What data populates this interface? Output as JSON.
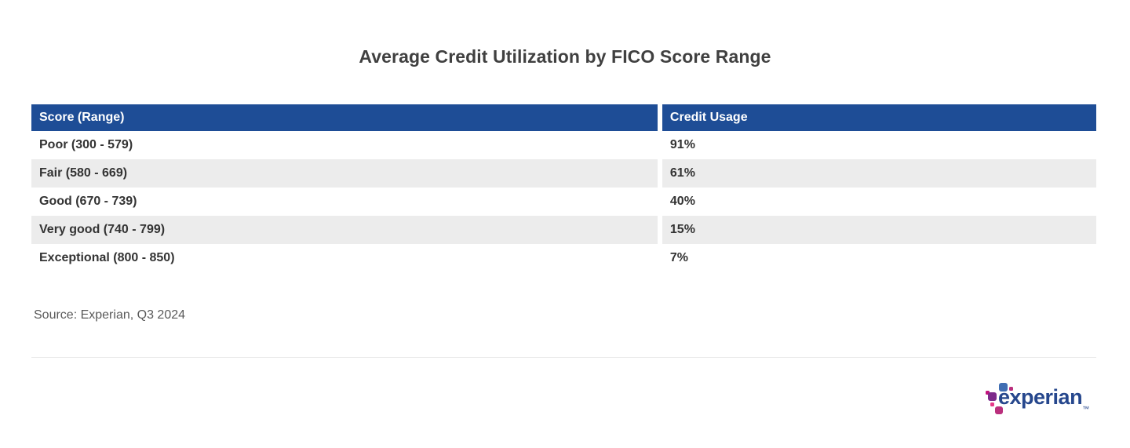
{
  "page": {
    "title": "Average Credit Utilization by FICO Score Range",
    "source_note": "Source: Experian, Q3 2024"
  },
  "chart_data": {
    "type": "table",
    "title": "Average Credit Utilization by FICO Score Range",
    "columns": [
      "Score (Range)",
      "Credit Usage"
    ],
    "rows": [
      [
        "Poor (300 - 579)",
        "91%"
      ],
      [
        "Fair (580 - 669)",
        "61%"
      ],
      [
        "Good (670 - 739)",
        "40%"
      ],
      [
        "Very good (740 - 799)",
        "15%"
      ],
      [
        "Exceptional (800 - 850)",
        "7%"
      ]
    ],
    "categories": [
      "Poor (300 - 579)",
      "Fair (580 - 669)",
      "Good (670 - 739)",
      "Very good (740 - 799)",
      "Exceptional (800 - 850)"
    ],
    "values": [
      91,
      61,
      40,
      15,
      7
    ],
    "value_unit": "%",
    "source": "Source: Experian, Q3 2024",
    "layout": {
      "header_style": "solid-navy",
      "zebra_striping": true,
      "grid": false
    }
  },
  "logo": {
    "text": "experian",
    "trademark": "™"
  },
  "colors": {
    "header_bg": "#1e4d96",
    "header_text": "#ffffff",
    "row_alt_bg": "#ececec",
    "row_text": "#333333",
    "title_text": "#404040",
    "source_text": "#595959",
    "divider": "#e8e8e8",
    "logo_navy": "#26478d",
    "logo_blue": "#406eb3",
    "logo_purple": "#7d2b8b",
    "logo_magenta": "#ba2f7d",
    "logo_pink": "#e63888"
  }
}
